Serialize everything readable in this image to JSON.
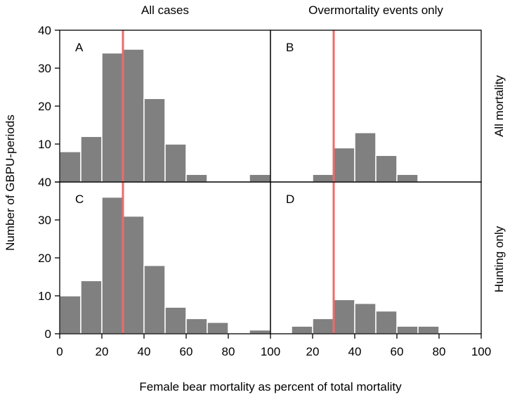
{
  "chart_data": {
    "type": "bar",
    "column_headers": [
      "All cases",
      "Overmortality events only"
    ],
    "row_headers": [
      "All mortality",
      "Hunting only"
    ],
    "xlabel": "Female bear mortality as percent of total mortality",
    "ylabel": "Number of GBPU-periods",
    "xlim": [
      0,
      100
    ],
    "ylim": [
      0,
      40
    ],
    "x_ticks": [
      0,
      20,
      40,
      60,
      80,
      100
    ],
    "y_ticks": [
      0,
      10,
      20,
      30,
      40
    ],
    "bin_width": 10,
    "reference_line": {
      "x": 30,
      "color": "#f06a6a"
    },
    "bar_color": "#808080",
    "panels": [
      {
        "label": "A",
        "row": 0,
        "col": 0,
        "bins": [
          {
            "x0": 0,
            "count": 8
          },
          {
            "x0": 10,
            "count": 12
          },
          {
            "x0": 20,
            "count": 34
          },
          {
            "x0": 30,
            "count": 35
          },
          {
            "x0": 40,
            "count": 22
          },
          {
            "x0": 50,
            "count": 10
          },
          {
            "x0": 60,
            "count": 2
          },
          {
            "x0": 90,
            "count": 2
          }
        ]
      },
      {
        "label": "B",
        "row": 0,
        "col": 1,
        "bins": [
          {
            "x0": 20,
            "count": 2
          },
          {
            "x0": 30,
            "count": 9
          },
          {
            "x0": 40,
            "count": 13
          },
          {
            "x0": 50,
            "count": 7
          },
          {
            "x0": 60,
            "count": 2
          }
        ]
      },
      {
        "label": "C",
        "row": 1,
        "col": 0,
        "bins": [
          {
            "x0": 0,
            "count": 10
          },
          {
            "x0": 10,
            "count": 14
          },
          {
            "x0": 20,
            "count": 36
          },
          {
            "x0": 30,
            "count": 31
          },
          {
            "x0": 40,
            "count": 18
          },
          {
            "x0": 50,
            "count": 7
          },
          {
            "x0": 60,
            "count": 4
          },
          {
            "x0": 70,
            "count": 3
          },
          {
            "x0": 90,
            "count": 1
          }
        ]
      },
      {
        "label": "D",
        "row": 1,
        "col": 1,
        "bins": [
          {
            "x0": 10,
            "count": 2
          },
          {
            "x0": 20,
            "count": 4
          },
          {
            "x0": 30,
            "count": 9
          },
          {
            "x0": 40,
            "count": 8
          },
          {
            "x0": 50,
            "count": 6
          },
          {
            "x0": 60,
            "count": 2
          },
          {
            "x0": 70,
            "count": 2
          }
        ]
      }
    ]
  }
}
